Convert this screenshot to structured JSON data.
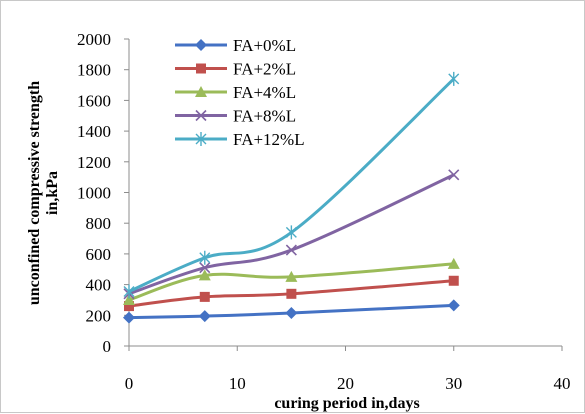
{
  "chart_data": {
    "type": "line",
    "title": "",
    "xlabel": "curing period in,days",
    "ylabel": "unconfined compressive strength in,kPa",
    "ylabel_lines": [
      "unconfined compressive strength",
      "in,kPa"
    ],
    "xlim": [
      0,
      40
    ],
    "ylim": [
      0,
      2000
    ],
    "x_ticks": [
      0,
      10,
      20,
      30,
      40
    ],
    "y_ticks": [
      0,
      200,
      400,
      600,
      800,
      1000,
      1200,
      1400,
      1600,
      1800,
      2000
    ],
    "grid": false,
    "legend_position": "top-left",
    "x": [
      0,
      7,
      15,
      30
    ],
    "series": [
      {
        "name": "FA+0%L",
        "values": [
          185,
          195,
          215,
          265
        ],
        "color": "#4472C4",
        "marker": "diamond"
      },
      {
        "name": "FA+2%L",
        "values": [
          260,
          320,
          340,
          425
        ],
        "color": "#C0504D",
        "marker": "square"
      },
      {
        "name": "FA+4%L",
        "values": [
          300,
          460,
          450,
          535
        ],
        "color": "#9BBB59",
        "marker": "triangle"
      },
      {
        "name": "FA+8%L",
        "values": [
          340,
          510,
          625,
          1115
        ],
        "color": "#8064A2",
        "marker": "x"
      },
      {
        "name": "FA+12%L",
        "values": [
          355,
          575,
          740,
          1740
        ],
        "color": "#4BACC6",
        "marker": "star"
      }
    ]
  }
}
